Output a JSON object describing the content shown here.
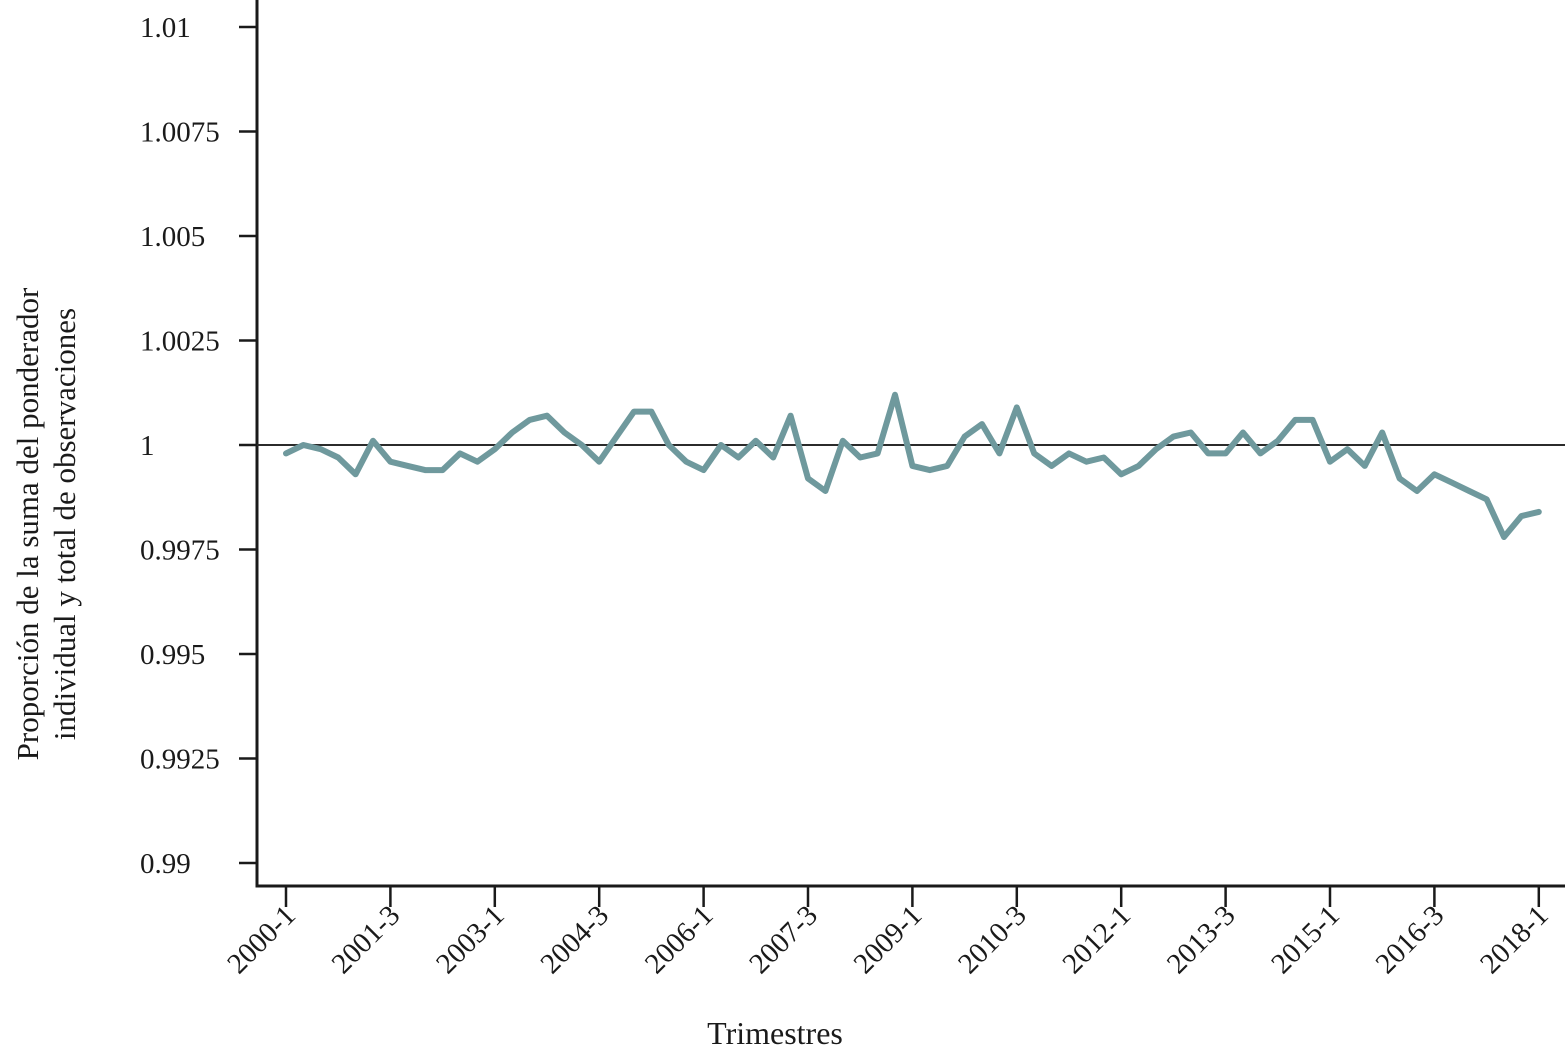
{
  "figure": {
    "background": "#ffffff"
  },
  "chart_data": {
    "type": "line",
    "title": "",
    "xlabel": "Trimestres",
    "ylabel_line1": "Proporción de la suma del ponderador",
    "ylabel_line2": "individual y total de observaciones",
    "x": [
      "2000-1",
      "2000-2",
      "2000-3",
      "2000-4",
      "2001-1",
      "2001-2",
      "2001-3",
      "2001-4",
      "2002-1",
      "2002-2",
      "2002-3",
      "2002-4",
      "2003-1",
      "2003-2",
      "2003-3",
      "2003-4",
      "2004-1",
      "2004-2",
      "2004-3",
      "2004-4",
      "2005-1",
      "2005-2",
      "2005-3",
      "2005-4",
      "2006-1",
      "2006-2",
      "2006-3",
      "2006-4",
      "2007-1",
      "2007-2",
      "2007-3",
      "2007-4",
      "2008-1",
      "2008-2",
      "2008-3",
      "2008-4",
      "2009-1",
      "2009-2",
      "2009-3",
      "2009-4",
      "2010-1",
      "2010-2",
      "2010-3",
      "2010-4",
      "2011-1",
      "2011-2",
      "2011-3",
      "2011-4",
      "2012-1",
      "2012-2",
      "2012-3",
      "2012-4",
      "2013-1",
      "2013-2",
      "2013-3",
      "2013-4",
      "2014-1",
      "2014-2",
      "2014-3",
      "2014-4",
      "2015-1",
      "2015-2",
      "2015-3",
      "2015-4",
      "2016-1",
      "2016-2",
      "2016-3",
      "2016-4",
      "2017-1",
      "2017-2",
      "2017-3",
      "2017-4",
      "2018-1"
    ],
    "series": [
      {
        "name": "proporcion",
        "values": [
          0.9998,
          1.0,
          0.9999,
          0.9997,
          0.9993,
          1.0001,
          0.9996,
          0.9995,
          0.9994,
          0.9994,
          0.9998,
          0.9996,
          0.9999,
          1.0003,
          1.0006,
          1.0007,
          1.0003,
          1.0,
          0.9996,
          1.0002,
          1.0008,
          1.0008,
          1.0,
          0.9996,
          0.9994,
          1.0,
          0.9997,
          1.0001,
          0.9997,
          1.0007,
          0.9992,
          0.9989,
          1.0001,
          0.9997,
          0.9998,
          1.0012,
          0.9995,
          0.9994,
          0.9995,
          1.0002,
          1.0005,
          0.9998,
          1.0009,
          0.9998,
          0.9995,
          0.9998,
          0.9996,
          0.9997,
          0.9993,
          0.9995,
          0.9999,
          1.0002,
          1.0003,
          0.9998,
          0.9998,
          1.0003,
          0.9998,
          1.0001,
          1.0006,
          1.0006,
          0.9996,
          0.9999,
          0.9995,
          1.0003,
          0.9992,
          0.9989,
          0.9993,
          0.9991,
          0.9989,
          0.9987,
          0.9978,
          0.9983,
          0.9984
        ]
      }
    ],
    "x_tick_labels": [
      "2000-1",
      "2001-3",
      "2003-1",
      "2004-3",
      "2006-1",
      "2007-3",
      "2009-1",
      "2010-3",
      "2012-1",
      "2013-3",
      "2015-1",
      "2016-3",
      "2018-1"
    ],
    "x_tick_every": 6,
    "y_tick_values": [
      1.01,
      1.0075,
      1.005,
      1.0025,
      1,
      0.9975,
      0.995,
      0.9925,
      0.99
    ],
    "y_tick_labels": [
      "1.01",
      "1.0075",
      "1.005",
      "1.0025",
      "1",
      "0.9975",
      "0.995",
      "0.9925",
      "0.99"
    ],
    "ylim": [
      0.99,
      1.01
    ],
    "reference_line_y": 1,
    "grid": false,
    "legend": "none",
    "line_color": "#6f999d",
    "reference_line_color": "#2b2b2b",
    "axis_color": "#1a1a1a",
    "text_color": "#1a1a1a"
  }
}
